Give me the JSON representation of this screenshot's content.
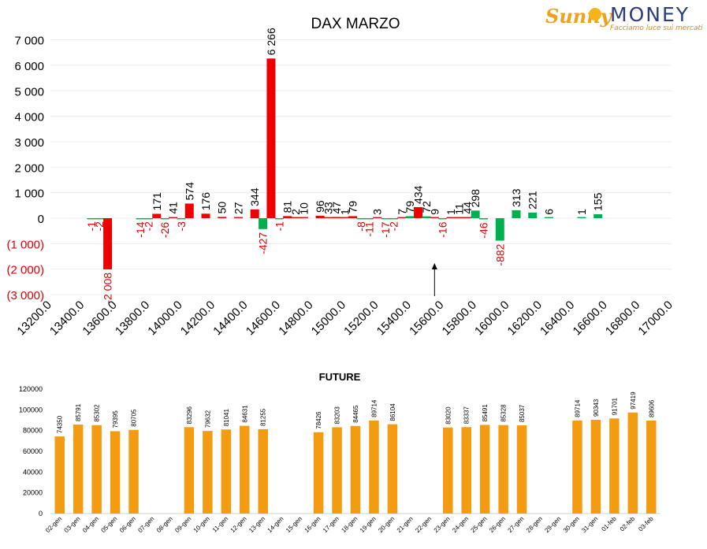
{
  "logo": {
    "brand_first": "Sunny",
    "brand_second": "MONEY",
    "tagline": "Facciamo luce sui mercati"
  },
  "colors": {
    "positive_bar": "#ee0000",
    "negative_bar": "#00b050",
    "negative_tick": "#e00000",
    "future_bar": "#f39c12",
    "label_red": "#e00000"
  },
  "chart_data": [
    {
      "type": "bar",
      "title": "DAX MARZO",
      "xlabel": "",
      "ylabel": "",
      "xlim": [
        13200,
        17000
      ],
      "ylim": [
        -3000,
        7000
      ],
      "grid": true,
      "x_ticks": [
        "13200.0",
        "13400.0",
        "13600.0",
        "13800.0",
        "14000.0",
        "14200.0",
        "14400.0",
        "14600.0",
        "14800.0",
        "15000.0",
        "15200.0",
        "15400.0",
        "15600.0",
        "15800.0",
        "16000.0",
        "16200.0",
        "16400.0",
        "16600.0",
        "16800.0",
        "17000.0"
      ],
      "y_ticks": [
        "7 000",
        "6 000",
        "5 000",
        "4 000",
        "3 000",
        "2 000",
        "1 000",
        "0",
        "(1 000)",
        "(2 000)",
        "(3 000)"
      ],
      "annotation": "arrow at 15550",
      "annotation_arrow_x": 15550,
      "points": [
        {
          "x": 13450,
          "value": -1,
          "label": "-1",
          "color": "green"
        },
        {
          "x": 13500,
          "value": -2,
          "label": "-2",
          "color": "green"
        },
        {
          "x": 13550,
          "value": -2008,
          "label": "-2 008",
          "color": "red"
        },
        {
          "x": 13750,
          "value": -14,
          "label": "-14",
          "color": "green"
        },
        {
          "x": 13800,
          "value": -2,
          "label": "-2",
          "color": "green"
        },
        {
          "x": 13850,
          "value": 171,
          "label": "171",
          "color": "red"
        },
        {
          "x": 13900,
          "value": -26,
          "label": "-26",
          "color": "green"
        },
        {
          "x": 13950,
          "value": 41,
          "label": "41",
          "color": "red"
        },
        {
          "x": 14000,
          "value": -3,
          "label": "-3",
          "color": "green"
        },
        {
          "x": 14050,
          "value": 574,
          "label": "574",
          "color": "red"
        },
        {
          "x": 14150,
          "value": 176,
          "label": "176",
          "color": "red"
        },
        {
          "x": 14250,
          "value": 50,
          "label": "50",
          "color": "red"
        },
        {
          "x": 14350,
          "value": 27,
          "label": "27",
          "color": "red"
        },
        {
          "x": 14450,
          "value": 344,
          "label": "344",
          "color": "red"
        },
        {
          "x": 14500,
          "value": -427,
          "label": "-427",
          "color": "green"
        },
        {
          "x": 14550,
          "value": 6266,
          "label": "6 266",
          "color": "red"
        },
        {
          "x": 14600,
          "value": -1,
          "label": "-1",
          "color": "green"
        },
        {
          "x": 14650,
          "value": 81,
          "label": "81",
          "color": "red"
        },
        {
          "x": 14700,
          "value": 2,
          "label": "2",
          "color": "red"
        },
        {
          "x": 14750,
          "value": 10,
          "label": "10",
          "color": "red"
        },
        {
          "x": 14850,
          "value": 96,
          "label": "96",
          "color": "red"
        },
        {
          "x": 14900,
          "value": 33,
          "label": "33",
          "color": "red"
        },
        {
          "x": 14950,
          "value": 47,
          "label": "47",
          "color": "red"
        },
        {
          "x": 15000,
          "value": 1,
          "label": "1",
          "color": "red"
        },
        {
          "x": 15050,
          "value": 79,
          "label": "79",
          "color": "red"
        },
        {
          "x": 15100,
          "value": -8,
          "label": "-8",
          "color": "green"
        },
        {
          "x": 15150,
          "value": -11,
          "label": "-11",
          "color": "green"
        },
        {
          "x": 15200,
          "value": 3,
          "label": "3",
          "color": "red"
        },
        {
          "x": 15250,
          "value": -17,
          "label": "-17",
          "color": "green"
        },
        {
          "x": 15300,
          "value": -2,
          "label": "-2",
          "color": "green"
        },
        {
          "x": 15350,
          "value": 7,
          "label": "7",
          "color": "red"
        },
        {
          "x": 15400,
          "value": 79,
          "label": "79",
          "color": "green"
        },
        {
          "x": 15450,
          "value": 434,
          "label": "434",
          "color": "red"
        },
        {
          "x": 15500,
          "value": 72,
          "label": "72",
          "color": "green"
        },
        {
          "x": 15550,
          "value": 9,
          "label": "9",
          "color": "red"
        },
        {
          "x": 15600,
          "value": -16,
          "label": "-16",
          "color": "green"
        },
        {
          "x": 15650,
          "value": 1,
          "label": "1",
          "color": "red"
        },
        {
          "x": 15700,
          "value": 11,
          "label": "11",
          "color": "red"
        },
        {
          "x": 15750,
          "value": 44,
          "label": "44",
          "color": "red"
        },
        {
          "x": 15800,
          "value": 298,
          "label": "298",
          "color": "green"
        },
        {
          "x": 15850,
          "value": -46,
          "label": "-46",
          "color": "green"
        },
        {
          "x": 15950,
          "value": -882,
          "label": "-882",
          "color": "green"
        },
        {
          "x": 16050,
          "value": 313,
          "label": "313",
          "color": "green"
        },
        {
          "x": 16150,
          "value": 221,
          "label": "221",
          "color": "green"
        },
        {
          "x": 16250,
          "value": 6,
          "label": "6",
          "color": "green"
        },
        {
          "x": 16450,
          "value": 1,
          "label": "1",
          "color": "green"
        },
        {
          "x": 16550,
          "value": 155,
          "label": "155",
          "color": "green"
        }
      ]
    },
    {
      "type": "bar",
      "title": "FUTURE",
      "xlabel": "",
      "ylabel": "",
      "ylim": [
        0,
        120000
      ],
      "y_ticks": [
        0,
        20000,
        40000,
        60000,
        80000,
        100000,
        120000
      ],
      "grid": false,
      "categories": [
        "02-gen",
        "03-gen",
        "04-gen",
        "05-gen",
        "06-gen",
        "07-gen",
        "08-gen",
        "09-gen",
        "10-gen",
        "11-gen",
        "12-gen",
        "13-gen",
        "14-gen",
        "15-gen",
        "16-gen",
        "17-gen",
        "18-gen",
        "19-gen",
        "20-gen",
        "21-gen",
        "22-gen",
        "23-gen",
        "24-gen",
        "25-gen",
        "26-gen",
        "27-gen",
        "28-gen",
        "29-gen",
        "30-gen",
        "31-gen",
        "01-feb",
        "02-feb",
        "03-feb"
      ],
      "values": [
        74350,
        85791,
        85302,
        79395,
        80705,
        null,
        null,
        83296,
        79632,
        81041,
        84631,
        81255,
        null,
        null,
        78426,
        83203,
        84465,
        89714,
        86104,
        null,
        null,
        83020,
        83337,
        85491,
        85328,
        85037,
        null,
        null,
        89714,
        90343,
        91701,
        97419,
        89606
      ]
    }
  ]
}
